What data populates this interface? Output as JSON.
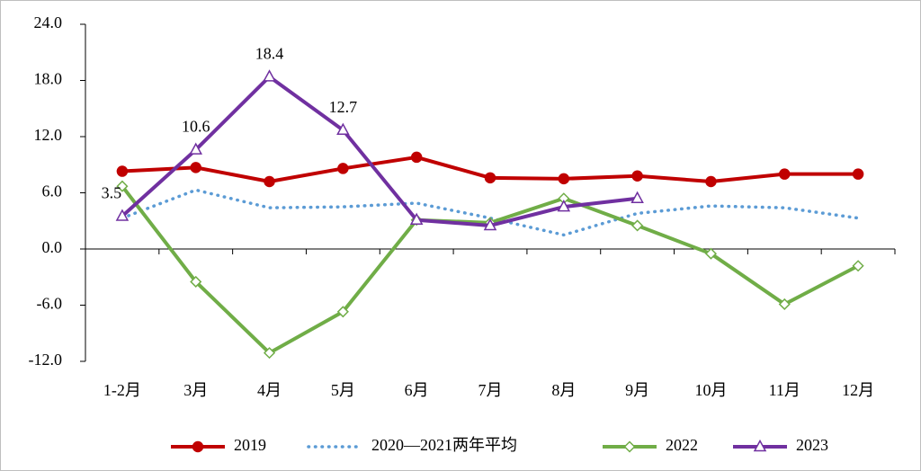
{
  "chart_data": {
    "type": "line",
    "categories": [
      "1-2月",
      "3月",
      "4月",
      "5月",
      "6月",
      "7月",
      "8月",
      "9月",
      "10月",
      "11月",
      "12月"
    ],
    "series": [
      {
        "name": "2019",
        "color": "#c00000",
        "style": "solid",
        "marker": "circle",
        "values": [
          8.3,
          8.7,
          7.2,
          8.6,
          9.8,
          7.6,
          7.5,
          7.8,
          7.2,
          8.0,
          8.0
        ]
      },
      {
        "name": "2020—2021两年平均",
        "color": "#5b9bd5",
        "style": "dotted",
        "marker": "none",
        "values": [
          3.3,
          6.3,
          4.4,
          4.5,
          4.9,
          3.3,
          1.5,
          3.8,
          4.6,
          4.4,
          3.3
        ]
      },
      {
        "name": "2022",
        "color": "#70ad47",
        "style": "solid",
        "marker": "diamond",
        "values": [
          6.7,
          -3.5,
          -11.1,
          -6.7,
          3.1,
          2.8,
          5.4,
          2.5,
          -0.5,
          -5.9,
          -1.8
        ]
      },
      {
        "name": "2023",
        "color": "#7030a0",
        "style": "solid",
        "marker": "triangle",
        "values": [
          3.5,
          10.6,
          18.4,
          12.7,
          3.1,
          2.5,
          4.5,
          5.4,
          null,
          null,
          null
        ],
        "value_labels": [
          "3.5",
          "10.6",
          "18.4",
          "12.7",
          null,
          null,
          null,
          null,
          null,
          null,
          null
        ]
      }
    ],
    "ylim": [
      -12,
      24
    ],
    "yticks": [
      {
        "value": -12,
        "label": "-12.0"
      },
      {
        "value": -6,
        "label": "-6.0"
      },
      {
        "value": 0,
        "label": "0.0"
      },
      {
        "value": 6,
        "label": "6.0"
      },
      {
        "value": 12,
        "label": "12.0"
      },
      {
        "value": 18,
        "label": "18.0"
      },
      {
        "value": 24,
        "label": "24.0"
      }
    ],
    "negative_tick_color": "#ff0000",
    "legend": "bottom"
  }
}
